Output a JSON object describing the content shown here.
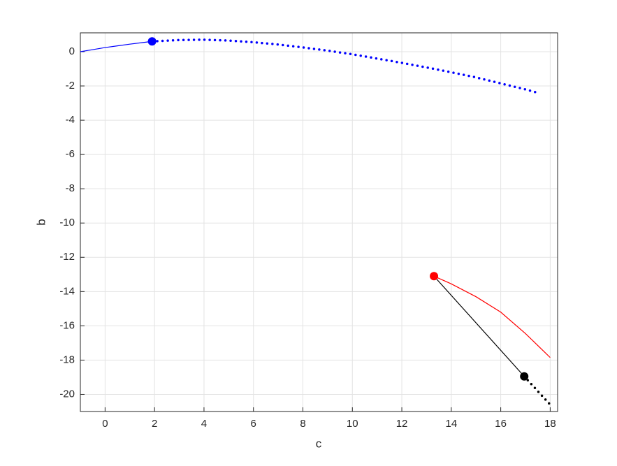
{
  "chart_data": {
    "type": "line",
    "xlabel": "c",
    "ylabel": "b",
    "xlim": [
      -1,
      18.3
    ],
    "ylim": [
      -21,
      1.1
    ],
    "xticks": [
      0,
      2,
      4,
      6,
      8,
      10,
      12,
      14,
      16,
      18
    ],
    "yticks": [
      0,
      -2,
      -4,
      -6,
      -8,
      -10,
      -12,
      -14,
      -16,
      -18,
      -20
    ],
    "grid": true,
    "series": [
      {
        "color": "#0000ff",
        "style": "solid",
        "x": [
          -1,
          -0.5,
          0,
          0.5,
          1,
          1.5,
          1.9
        ],
        "values": [
          0,
          0.12,
          0.24,
          0.34,
          0.44,
          0.53,
          0.6
        ]
      },
      {
        "color": "#0000ff",
        "style": "dotted",
        "x": [
          1.9,
          3,
          4,
          5,
          6,
          7,
          8,
          9,
          10,
          11,
          12,
          13,
          14,
          15,
          16,
          17,
          17.5
        ],
        "values": [
          0.6,
          0.68,
          0.7,
          0.65,
          0.55,
          0.42,
          0.25,
          0.06,
          -0.15,
          -0.4,
          -0.65,
          -0.92,
          -1.2,
          -1.5,
          -1.85,
          -2.2,
          -2.4
        ]
      },
      {
        "color": "#ff0000",
        "style": "solid",
        "x": [
          13.3,
          14,
          15,
          16,
          17,
          18
        ],
        "values": [
          -13.1,
          -13.55,
          -14.3,
          -15.2,
          -16.45,
          -17.85
        ]
      },
      {
        "color": "#000000",
        "style": "solid",
        "x": [
          13.3,
          16.95
        ],
        "values": [
          -13.1,
          -18.95
        ]
      },
      {
        "color": "#000000",
        "style": "dotted",
        "x": [
          16.95,
          18
        ],
        "values": [
          -18.95,
          -20.6
        ]
      },
      {
        "color": "#0000ff",
        "style": "marker",
        "x": [
          1.9
        ],
        "values": [
          0.6
        ]
      },
      {
        "color": "#ff0000",
        "style": "marker",
        "x": [
          13.3
        ],
        "values": [
          -13.1
        ]
      },
      {
        "color": "#000000",
        "style": "marker",
        "x": [
          16.95
        ],
        "values": [
          -18.95
        ]
      }
    ]
  }
}
